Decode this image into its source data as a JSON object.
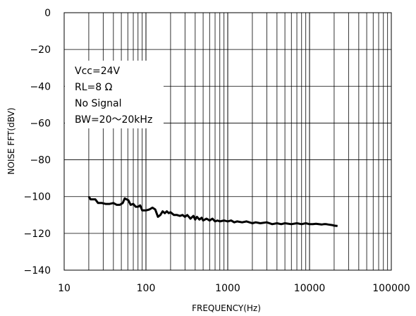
{
  "chart_data": {
    "type": "line",
    "title": "",
    "xlabel": "FREQUENCY(Hz)",
    "ylabel": "NOISE FFT(dBV)",
    "x_scale": "log",
    "xlim": [
      10,
      100000
    ],
    "ylim": [
      -140,
      0
    ],
    "x_ticks": [
      "10",
      "100",
      "1000",
      "10000",
      "100000"
    ],
    "y_ticks": [
      "0",
      "-20",
      "-40",
      "-60",
      "-80",
      "-100",
      "-120",
      "-140"
    ],
    "grid": true,
    "legend": "none",
    "annotations": [
      "Vcc=24V",
      "RL=8 Ω",
      "No Signal",
      "BW=20～20kHz"
    ],
    "series": [
      {
        "color": "#000000",
        "points": [
          [
            20,
            -100
          ],
          [
            21,
            -101.5
          ],
          [
            24,
            -101.5
          ],
          [
            26,
            -103.5
          ],
          [
            29,
            -103.5
          ],
          [
            32,
            -104
          ],
          [
            36,
            -104
          ],
          [
            40,
            -103.5
          ],
          [
            44,
            -104.5
          ],
          [
            48,
            -104.5
          ],
          [
            52,
            -103.5
          ],
          [
            55,
            -101
          ],
          [
            58,
            -101.5
          ],
          [
            61,
            -102
          ],
          [
            65,
            -104.5
          ],
          [
            70,
            -104
          ],
          [
            75,
            -105.5
          ],
          [
            80,
            -105.5
          ],
          [
            85,
            -104.8
          ],
          [
            90,
            -107.5
          ],
          [
            95,
            -107.5
          ],
          [
            100,
            -107.5
          ],
          [
            110,
            -107
          ],
          [
            120,
            -106
          ],
          [
            130,
            -107
          ],
          [
            135,
            -109
          ],
          [
            140,
            -111
          ],
          [
            150,
            -110
          ],
          [
            160,
            -108
          ],
          [
            170,
            -109
          ],
          [
            180,
            -108
          ],
          [
            190,
            -109
          ],
          [
            200,
            -108.5
          ],
          [
            220,
            -110
          ],
          [
            240,
            -110
          ],
          [
            260,
            -110.5
          ],
          [
            280,
            -110
          ],
          [
            300,
            -111
          ],
          [
            320,
            -110
          ],
          [
            350,
            -112
          ],
          [
            380,
            -110.5
          ],
          [
            400,
            -112.5
          ],
          [
            420,
            -111
          ],
          [
            450,
            -112.5
          ],
          [
            480,
            -111.5
          ],
          [
            500,
            -113
          ],
          [
            550,
            -112
          ],
          [
            600,
            -113
          ],
          [
            650,
            -112
          ],
          [
            700,
            -113.5
          ],
          [
            750,
            -113
          ],
          [
            800,
            -113.5
          ],
          [
            900,
            -113
          ],
          [
            1000,
            -113.5
          ],
          [
            1100,
            -113
          ],
          [
            1200,
            -114
          ],
          [
            1300,
            -113.5
          ],
          [
            1500,
            -114
          ],
          [
            1700,
            -113.5
          ],
          [
            2000,
            -114.5
          ],
          [
            2200,
            -114
          ],
          [
            2500,
            -114.5
          ],
          [
            3000,
            -114
          ],
          [
            3500,
            -115
          ],
          [
            4000,
            -114.5
          ],
          [
            4500,
            -115
          ],
          [
            5000,
            -114.5
          ],
          [
            6000,
            -115
          ],
          [
            7000,
            -114.5
          ],
          [
            8000,
            -115
          ],
          [
            9000,
            -114.5
          ],
          [
            10000,
            -115
          ],
          [
            11000,
            -115
          ],
          [
            12000,
            -114.8
          ],
          [
            14000,
            -115.2
          ],
          [
            15000,
            -115
          ],
          [
            16000,
            -115
          ],
          [
            17000,
            -115.2
          ],
          [
            19000,
            -115.5
          ],
          [
            20000,
            -115.8
          ],
          [
            22000,
            -116
          ]
        ]
      }
    ]
  }
}
